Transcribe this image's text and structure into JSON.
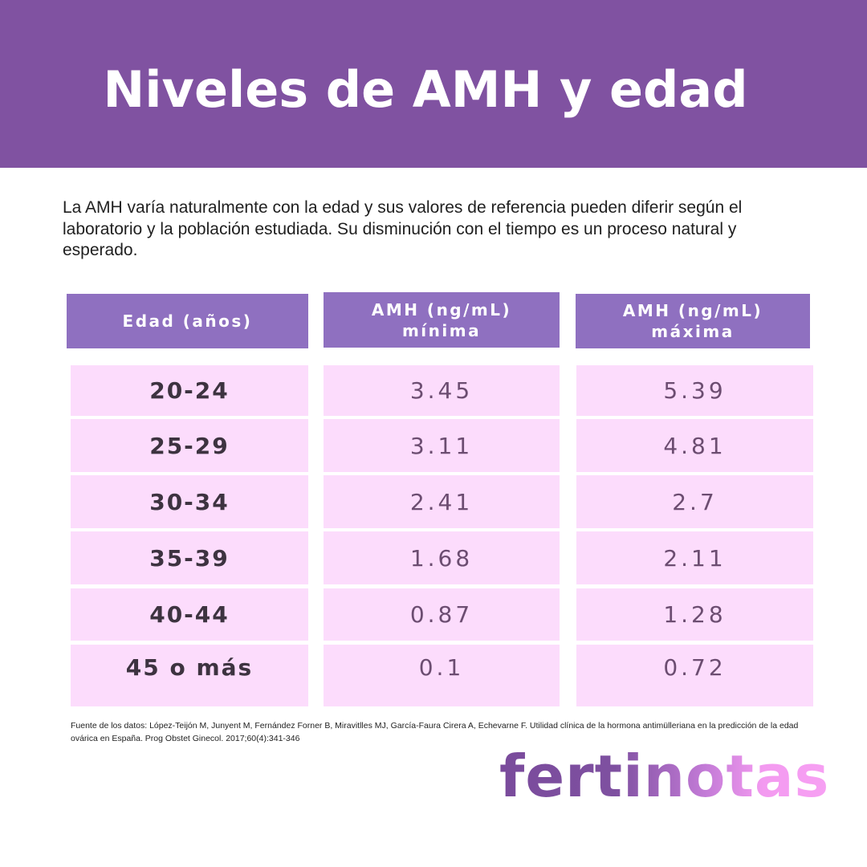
{
  "header": {
    "title": "Niveles de AMH y edad",
    "background_color": "#8052a1"
  },
  "intro": {
    "text": "La AMH varía naturalmente con la edad y sus valores de referencia pueden diferir según el laboratorio y la población estudiada. Su disminución con el tiempo es un proceso natural y esperado."
  },
  "table": {
    "header_color": "#8f70c0",
    "cell_color": "#fcdcfc",
    "columns": [
      {
        "line1": "Edad (años)",
        "line2": ""
      },
      {
        "line1": "AMH (ng/mL)",
        "line2": "mínima"
      },
      {
        "line1": "AMH (ng/mL)",
        "line2": "máxima"
      }
    ],
    "rows": [
      {
        "age": "20-24",
        "min": "3.45",
        "max": "5.39"
      },
      {
        "age": "25-29",
        "min": "3.11",
        "max": "4.81"
      },
      {
        "age": "30-34",
        "min": "2.41",
        "max": "2.7"
      },
      {
        "age": "35-39",
        "min": "1.68",
        "max": "2.11"
      },
      {
        "age": "40-44",
        "min": "0.87",
        "max": "1.28"
      },
      {
        "age": "45 o más",
        "min": "0.1",
        "max": "0.72"
      }
    ]
  },
  "source": {
    "text": "Fuente de los datos: López-Teijón M, Junyent M, Fernández Forner B, Miravitlles MJ, García-Faura Cirera A, Echevarne F. Utilidad clínica de la hormona antimülleriana en la predicción de la edad ovárica en España. Prog Obstet Ginecol. 2017;60(4):341-346"
  },
  "brand": {
    "logo_text": "fertinotas",
    "gradient_start": "#7a4b9c",
    "gradient_end": "#f7a0f3"
  }
}
